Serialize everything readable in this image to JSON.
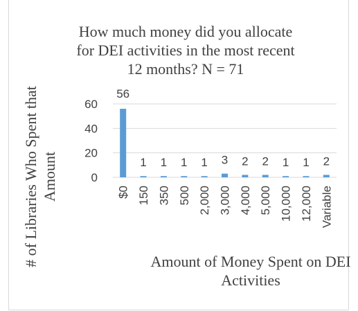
{
  "chart_data": {
    "type": "bar",
    "title_lines": [
      "How much money did you allocate",
      "for DEI activities in the most recent",
      "12 months? N = 71"
    ],
    "xlabel_lines": [
      "Amount of Money Spent on DEI",
      "Activities"
    ],
    "ylabel_lines": [
      "# of Libraries Who Spent that",
      "Amount"
    ],
    "categories": [
      "$0",
      "150",
      "350",
      "500",
      "2,000",
      "3,000",
      "4,000",
      "5,000",
      "10,000",
      "12,000",
      "Variable"
    ],
    "values": [
      56,
      1,
      1,
      1,
      1,
      3,
      2,
      2,
      1,
      1,
      2
    ],
    "ylim": [
      0,
      60
    ],
    "yticks": [
      0,
      20,
      40,
      60
    ],
    "grid": true,
    "bar_color": "#5b9bd5",
    "grid_color": "#d9d9d9",
    "text_color": "#404040"
  }
}
